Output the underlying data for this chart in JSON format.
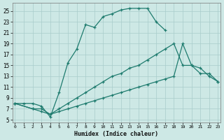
{
  "xlabel": "Humidex (Indice chaleur)",
  "bg_color": "#cde8e5",
  "grid_color": "#a8cccb",
  "line_color": "#1e7b6e",
  "line1_x": [
    0,
    1,
    2,
    3,
    4,
    5,
    6,
    7,
    8,
    9,
    10,
    11,
    12,
    13,
    14,
    15,
    16,
    17
  ],
  "line1_y": [
    8,
    8,
    8,
    7.5,
    5.5,
    10,
    15.5,
    18,
    22.5,
    22,
    24,
    24.5,
    25.2,
    25.5,
    25.5,
    25.5,
    23,
    21.5
  ],
  "line2_x": [
    0,
    2,
    3,
    4,
    5,
    6,
    7,
    8,
    9,
    10,
    11,
    12,
    13,
    14,
    15,
    16,
    17,
    18,
    19,
    20,
    21,
    22,
    23
  ],
  "line2_y": [
    8,
    7,
    7,
    6,
    7,
    8,
    9,
    10,
    11,
    12,
    13,
    13.5,
    14.5,
    15,
    16,
    17,
    18,
    19,
    15,
    15,
    13.5,
    13.5,
    12
  ],
  "line3_x": [
    0,
    2,
    3,
    4,
    5,
    6,
    7,
    8,
    9,
    10,
    11,
    12,
    13,
    14,
    15,
    16,
    17,
    18,
    19,
    20,
    21,
    22,
    23
  ],
  "line3_y": [
    8,
    7,
    6.5,
    6,
    6.5,
    7,
    7.5,
    8,
    8.5,
    9,
    9.5,
    10,
    10.5,
    11,
    11.5,
    12,
    12.5,
    13,
    19,
    15,
    14.5,
    13,
    12
  ],
  "xlim": [
    -0.3,
    23.3
  ],
  "ylim": [
    4.5,
    26.5
  ],
  "yticks": [
    5,
    7,
    9,
    11,
    13,
    15,
    17,
    19,
    21,
    23,
    25
  ],
  "xticks": [
    0,
    1,
    2,
    3,
    4,
    5,
    6,
    7,
    8,
    9,
    10,
    11,
    12,
    13,
    14,
    15,
    16,
    17,
    18,
    19,
    20,
    21,
    22,
    23
  ]
}
